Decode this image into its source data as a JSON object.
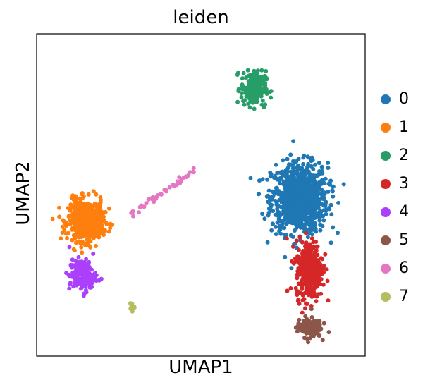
{
  "chart_data": {
    "type": "scatter",
    "title": "leiden",
    "xlabel": "UMAP1",
    "ylabel": "UMAP2",
    "xlim": [
      0,
      100
    ],
    "ylim": [
      0,
      100
    ],
    "grid": false,
    "legend_position": "right",
    "legend_title": "",
    "clusters": [
      {
        "name": "0",
        "color": "#1f77b4",
        "center": [
          80,
          49
        ],
        "spread": [
          9.5,
          12
        ],
        "count": 900
      },
      {
        "name": "1",
        "color": "#ff7f0e",
        "center": [
          15,
          42
        ],
        "spread": [
          6,
          7
        ],
        "count": 520
      },
      {
        "name": "2",
        "color": "#279e68",
        "center": [
          66,
          83
        ],
        "spread": [
          4.2,
          6
        ],
        "count": 210
      },
      {
        "name": "3",
        "color": "#d62728",
        "center": [
          83,
          27
        ],
        "spread": [
          4.5,
          10
        ],
        "count": 360
      },
      {
        "name": "4",
        "color": "#aa40fc",
        "center": [
          14,
          25
        ],
        "spread": [
          4.5,
          5.5
        ],
        "count": 170
      },
      {
        "name": "5",
        "color": "#8c564b",
        "center": [
          83,
          9
        ],
        "spread": [
          4,
          3.5
        ],
        "count": 140
      },
      {
        "name": "6",
        "color": "#e377c2",
        "center": [
          36,
          49
        ],
        "spread": [
          6.5,
          4.5
        ],
        "count": 45
      },
      {
        "name": "7",
        "color": "#b5bd61",
        "center": [
          29,
          15
        ],
        "spread": [
          0.8,
          1.4
        ],
        "count": 8
      }
    ]
  }
}
